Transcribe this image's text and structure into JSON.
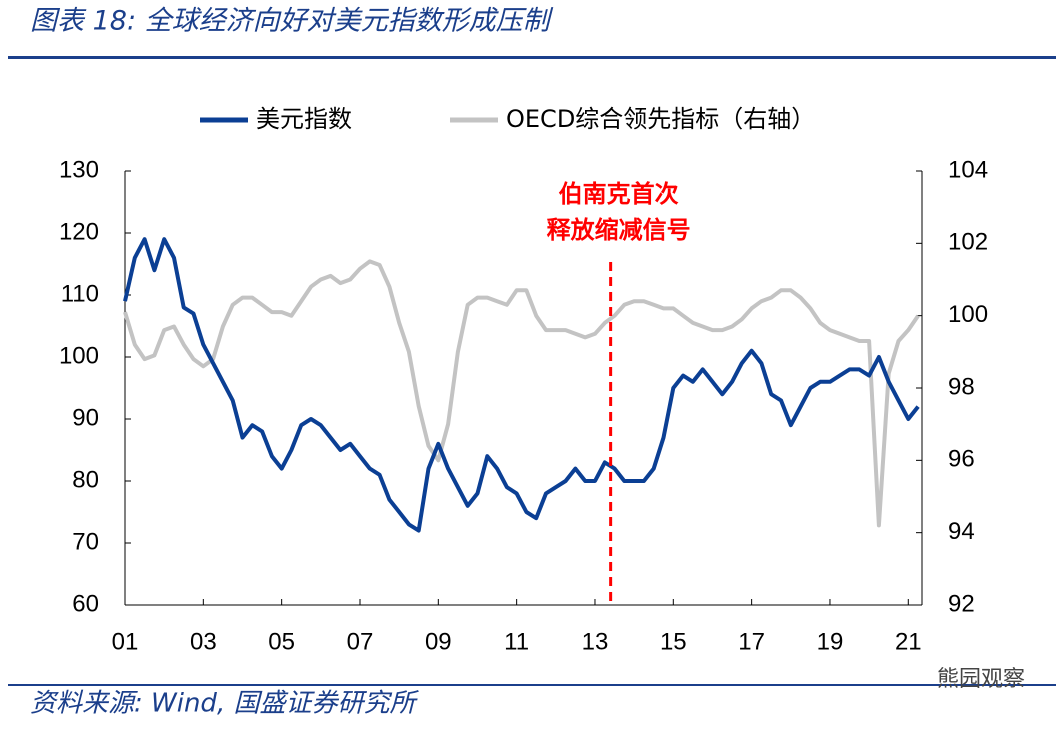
{
  "chart_data": {
    "type": "line",
    "title": "图表 18: 全球经济向好对美元指数形成压制",
    "source": "资料来源: Wind, 国盛证券研究所",
    "watermark": "熊园观察",
    "x": [
      2001.0,
      2001.25,
      2001.5,
      2001.75,
      2002.0,
      2002.25,
      2002.5,
      2002.75,
      2003.0,
      2003.25,
      2003.5,
      2003.75,
      2004.0,
      2004.25,
      2004.5,
      2004.75,
      2005.0,
      2005.25,
      2005.5,
      2005.75,
      2006.0,
      2006.25,
      2006.5,
      2006.75,
      2007.0,
      2007.25,
      2007.5,
      2007.75,
      2008.0,
      2008.25,
      2008.5,
      2008.75,
      2009.0,
      2009.25,
      2009.5,
      2009.75,
      2010.0,
      2010.25,
      2010.5,
      2010.75,
      2011.0,
      2011.25,
      2011.5,
      2011.75,
      2012.0,
      2012.25,
      2012.5,
      2012.75,
      2013.0,
      2013.25,
      2013.5,
      2013.75,
      2014.0,
      2014.25,
      2014.5,
      2014.75,
      2015.0,
      2015.25,
      2015.5,
      2015.75,
      2016.0,
      2016.25,
      2016.5,
      2016.75,
      2017.0,
      2017.25,
      2017.5,
      2017.75,
      2018.0,
      2018.25,
      2018.5,
      2018.75,
      2019.0,
      2019.25,
      2019.5,
      2019.75,
      2020.0,
      2020.25,
      2020.5,
      2020.75,
      2021.0,
      2021.25
    ],
    "series": [
      {
        "name": "美元指数",
        "color": "#0b3f94",
        "axis": "y",
        "values": [
          109,
          116,
          119,
          114,
          119,
          116,
          108,
          107,
          102,
          99,
          96,
          93,
          87,
          89,
          88,
          84,
          82,
          85,
          89,
          90,
          89,
          87,
          85,
          86,
          84,
          82,
          81,
          77,
          75,
          73,
          72,
          82,
          86,
          82,
          79,
          76,
          78,
          84,
          82,
          79,
          78,
          75,
          74,
          78,
          79,
          80,
          82,
          80,
          80,
          83,
          82,
          80,
          80,
          80,
          82,
          87,
          95,
          97,
          96,
          98,
          96,
          94,
          96,
          99,
          101,
          99,
          94,
          93,
          89,
          92,
          95,
          96,
          96,
          97,
          98,
          98,
          97,
          100,
          96,
          93,
          90,
          92
        ]
      },
      {
        "name": "OECD综合领先指标（右轴）",
        "color": "#c3c3c3",
        "axis": "y2",
        "values": [
          100.1,
          99.2,
          98.8,
          98.9,
          99.6,
          99.7,
          99.2,
          98.8,
          98.6,
          98.8,
          99.7,
          100.3,
          100.5,
          100.5,
          100.3,
          100.1,
          100.1,
          100.0,
          100.4,
          100.8,
          101.0,
          101.1,
          100.9,
          101.0,
          101.3,
          101.5,
          101.4,
          100.8,
          99.8,
          99.0,
          97.5,
          96.4,
          96.0,
          97.0,
          99.0,
          100.3,
          100.5,
          100.5,
          100.4,
          100.3,
          100.7,
          100.7,
          100.0,
          99.6,
          99.6,
          99.6,
          99.5,
          99.4,
          99.5,
          99.8,
          100.0,
          100.3,
          100.4,
          100.4,
          100.3,
          100.2,
          100.2,
          100.0,
          99.8,
          99.7,
          99.6,
          99.6,
          99.7,
          99.9,
          100.2,
          100.4,
          100.5,
          100.7,
          100.7,
          100.5,
          100.2,
          99.8,
          99.6,
          99.5,
          99.4,
          99.3,
          99.3,
          94.2,
          98.4,
          99.3,
          99.6,
          100.0
        ]
      }
    ],
    "xlim": [
      2001,
      2021.35
    ],
    "xticks": [
      {
        "value": 2001,
        "label": "01"
      },
      {
        "value": 2003,
        "label": "03"
      },
      {
        "value": 2005,
        "label": "05"
      },
      {
        "value": 2007,
        "label": "07"
      },
      {
        "value": 2009,
        "label": "09"
      },
      {
        "value": 2011,
        "label": "11"
      },
      {
        "value": 2013,
        "label": "13"
      },
      {
        "value": 2015,
        "label": "15"
      },
      {
        "value": 2017,
        "label": "17"
      },
      {
        "value": 2019,
        "label": "19"
      },
      {
        "value": 2021,
        "label": "21"
      }
    ],
    "ylim": [
      60,
      130
    ],
    "yticks": [
      60,
      70,
      80,
      90,
      100,
      110,
      120,
      130
    ],
    "y2lim": [
      92,
      104
    ],
    "y2ticks": [
      92,
      94,
      96,
      98,
      100,
      102,
      104
    ],
    "annotation": {
      "x": 2013.4,
      "color": "#ff0000",
      "lines": [
        "伯南克首次",
        "释放缩减信号"
      ]
    },
    "legend": "top"
  }
}
